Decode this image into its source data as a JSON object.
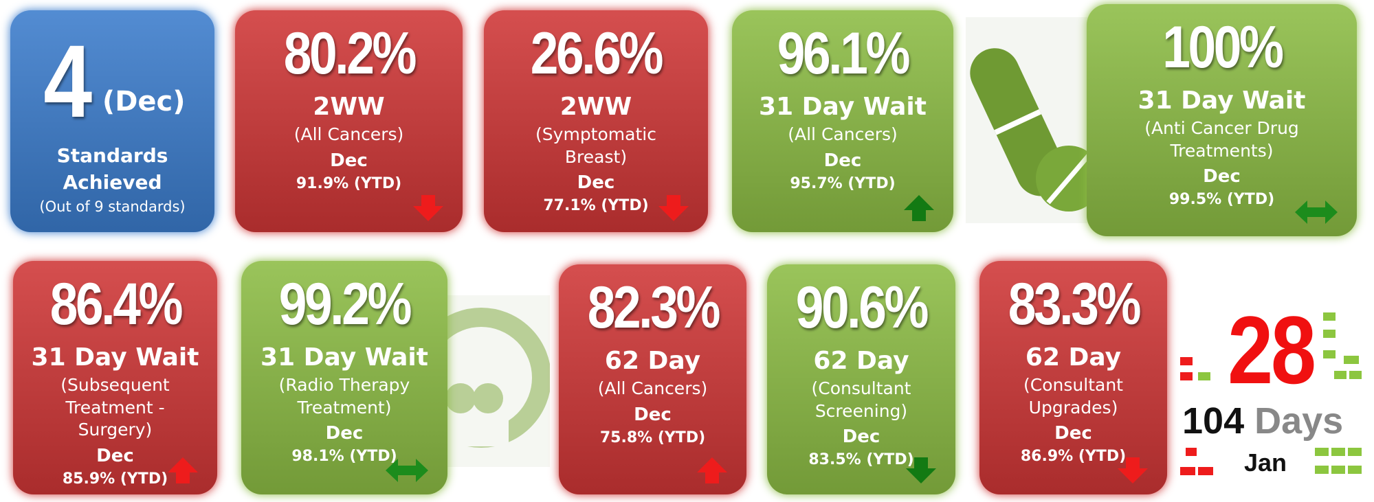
{
  "standards": {
    "value": "4",
    "period": "(Dec)",
    "label": "Standards Achieved",
    "note": "(Out of 9 standards)",
    "color": "#3b7ccc"
  },
  "tiles": [
    {
      "value": "80.2%",
      "measure": "2WW",
      "detail": "(All Cancers)",
      "period": "Dec",
      "ytd": "91.9% (YTD)",
      "color": "#cf3636",
      "arrow": "down",
      "arrow_color": "#ee1c1c"
    },
    {
      "value": "26.6%",
      "measure": "2WW",
      "detail": "(Symptomatic Breast)",
      "period": "Dec",
      "ytd": "77.1% (YTD)",
      "color": "#cf3636",
      "arrow": "down",
      "arrow_color": "#ee1c1c"
    },
    {
      "value": "96.1%",
      "measure": "31 Day Wait",
      "detail": "(All Cancers)",
      "period": "Dec",
      "ytd": "95.7% (YTD)",
      "color": "#8cbc44",
      "arrow": "up",
      "arrow_color": "#137a13"
    },
    {
      "value": "100%",
      "measure": "31 Day Wait",
      "detail": "(Anti Cancer Drug Treatments)",
      "period": "Dec",
      "ytd": "99.5% (YTD)",
      "color": "#8cbc44",
      "arrow": "both",
      "arrow_color": "#1c8c1c"
    },
    {
      "value": "86.4%",
      "measure": "31 Day Wait",
      "detail": "(Subsequent Treatment - Surgery)",
      "period": "Dec",
      "ytd": "85.9% (YTD)",
      "color": "#cf3636",
      "arrow": "up",
      "arrow_color": "#ee1c1c"
    },
    {
      "value": "99.2%",
      "measure": "31 Day Wait",
      "detail": "(Radio Therapy Treatment)",
      "period": "Dec",
      "ytd": "98.1% (YTD)",
      "color": "#8cbc44",
      "arrow": "both",
      "arrow_color": "#1c8c1c"
    },
    {
      "value": "82.3%",
      "measure": "62 Day",
      "detail": "(All Cancers)",
      "period": "Dec",
      "ytd": "75.8% (YTD)",
      "color": "#cf3636",
      "arrow": "up",
      "arrow_color": "#ee1c1c"
    },
    {
      "value": "90.6%",
      "measure": "62 Day",
      "detail": "(Consultant Screening)",
      "period": "Dec",
      "ytd": "83.5% (YTD)",
      "color": "#8cbc44",
      "arrow": "down",
      "arrow_color": "#137a13"
    },
    {
      "value": "83.3%",
      "measure": "62 Day",
      "detail": "(Consultant Upgrades)",
      "period": "Dec",
      "ytd": "86.9% (YTD)",
      "color": "#cf3636",
      "arrow": "down",
      "arrow_color": "#ee1c1c"
    }
  ],
  "days": {
    "value": "28",
    "total": "104",
    "unit": "Days",
    "month": "Jan"
  }
}
